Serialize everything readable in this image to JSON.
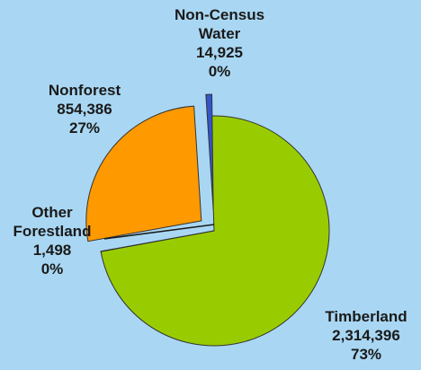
{
  "chart_data": {
    "type": "pie",
    "exploded": true,
    "slices": [
      {
        "name": "Timberland",
        "value": 2314396,
        "value_label": "2,314,396",
        "percent_label": "73%",
        "color": "#99cc00"
      },
      {
        "name": "Other Forestland",
        "value": 1498,
        "value_label": "1,498",
        "percent_label": "0%",
        "color": "#99cc00"
      },
      {
        "name": "Nonforest",
        "value": 854386,
        "value_label": "854,386",
        "percent_label": "27%",
        "color": "#ff9900"
      },
      {
        "name": "Non-Census Water",
        "value": 14925,
        "value_label": "14,925",
        "percent_label": "0%",
        "color": "#3355cc"
      }
    ]
  },
  "labels": {
    "water": {
      "line1": "Non-Census",
      "line2": "Water",
      "value": "14,925",
      "percent": "0%"
    },
    "nonforest": {
      "line1": "Nonforest",
      "value": "854,386",
      "percent": "27%"
    },
    "other": {
      "line1": "Other",
      "line2": "Forestland",
      "value": "1,498",
      "percent": "0%"
    },
    "timber": {
      "line1": "Timberland",
      "value": "2,314,396",
      "percent": "73%"
    }
  },
  "background_color": "#a9d7f3"
}
